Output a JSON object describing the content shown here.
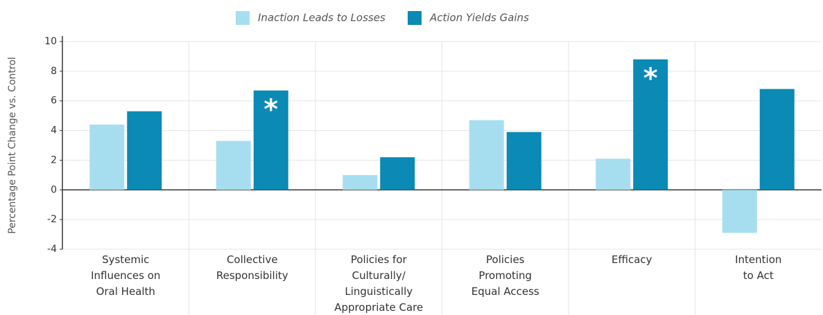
{
  "chart_data": {
    "type": "bar",
    "y_label": "Percentage Point Change vs. Control",
    "categories": [
      "Systemic\nInfluences on\nOral Health",
      "Collective\nResponsibility",
      "Policies for\nCulturally/\nLinguistically\nAppropriate Care",
      "Policies\nPromoting\nEqual Access",
      "Efficacy",
      "Intention\nto Act"
    ],
    "series": [
      {
        "name": "Inaction Leads to Losses",
        "color": "#a6def0",
        "values": [
          4.4,
          3.3,
          1.0,
          4.7,
          2.1,
          -2.9
        ]
      },
      {
        "name": "Action Yields Gains",
        "color": "#0a8ab4",
        "values": [
          5.3,
          6.7,
          2.2,
          3.9,
          8.8,
          6.8
        ]
      }
    ],
    "annotations": [
      {
        "text": "*",
        "series": 1,
        "category": 1
      },
      {
        "text": "*",
        "series": 1,
        "category": 4
      }
    ],
    "ylim": [
      -4,
      10
    ],
    "yticks": [
      -4,
      -2,
      0,
      2,
      4,
      6,
      8,
      10
    ],
    "grid": true,
    "legend": "top"
  }
}
